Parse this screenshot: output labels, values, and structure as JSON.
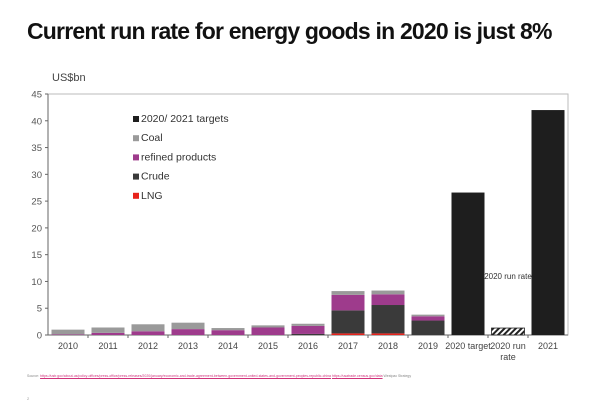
{
  "title": "Current run rate for energy goods in 2020 is just 8%",
  "page_number": "2",
  "source": {
    "label": "Source:",
    "link1": "https://ustr.gov/about-us/policy-offices/press-office/press-releases/2020/january/economic-and-trade-agreement-between-government-united-states-and-government-peoples-republic-china",
    "link2": "https://usatrade.census.gov/data",
    "credit": "Westpac Strategy"
  },
  "chart_data": {
    "type": "bar",
    "stacked": true,
    "title": "",
    "ylabel": "US$bn",
    "xlabel": "",
    "ylim": [
      0,
      45
    ],
    "yticks": [
      0,
      5,
      10,
      15,
      20,
      25,
      30,
      35,
      40,
      45
    ],
    "grid": false,
    "legend_position": "top-left",
    "categories": [
      "2010",
      "2011",
      "2012",
      "2013",
      "2014",
      "2015",
      "2016",
      "2017",
      "2018",
      "2019",
      "2020 target",
      "2020 run rate",
      "2021"
    ],
    "series": [
      {
        "name": "LNG",
        "color": "#e8231c",
        "values": [
          0,
          0,
          0,
          0,
          0,
          0,
          0,
          0.3,
          0.3,
          0,
          0,
          0,
          0
        ]
      },
      {
        "name": "Crude",
        "color": "#3a3a3a",
        "values": [
          0,
          0,
          0,
          0,
          0,
          0,
          0.2,
          4.3,
          5.3,
          2.7,
          0,
          0,
          0
        ]
      },
      {
        "name": "refined products",
        "color": "#9e3b8c",
        "values": [
          0.1,
          0.4,
          0.7,
          1.1,
          0.9,
          1.4,
          1.5,
          2.9,
          2.0,
          0.8,
          0,
          0,
          0
        ]
      },
      {
        "name": "Coal",
        "color": "#9a9a9a",
        "values": [
          0.9,
          1.0,
          1.3,
          1.2,
          0.4,
          0.4,
          0.4,
          0.7,
          0.7,
          0.3,
          0,
          0,
          0
        ]
      },
      {
        "name": "2020/ 2021 targets",
        "color": "#1e1e1e",
        "values": [
          0,
          0,
          0,
          0,
          0,
          0,
          0,
          0,
          0,
          0,
          26.6,
          0,
          42.0
        ]
      },
      {
        "name": "2020 run rate",
        "color": "hatched",
        "values": [
          0,
          0,
          0,
          0,
          0,
          0,
          0,
          0,
          0,
          0,
          0,
          1.3,
          0
        ]
      }
    ],
    "legend": [
      "2020/ 2021 targets",
      "Coal",
      "refined products",
      "Crude",
      "LNG"
    ],
    "annotations": [
      {
        "text": "2020 run rate",
        "category": "2020 run rate",
        "y": 11
      }
    ]
  }
}
